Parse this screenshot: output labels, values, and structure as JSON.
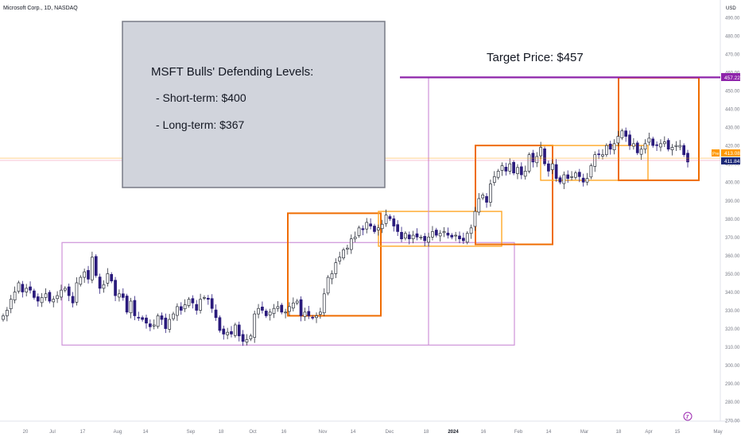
{
  "header": {
    "symbol_title": "Microsoft Corp., 1D, NASDAQ",
    "currency": "USD"
  },
  "colors": {
    "candle_bull_fill": "#ffffff",
    "candle_bull_border": "#2a2e39",
    "candle_bear": "#2a1b7c",
    "box_dark_orange": "#ef6c00",
    "box_light_orange": "#ffa726",
    "box_violet": "#ce93d8",
    "target_line": "#8e24aa",
    "note_fill": "#d1d4dc",
    "note_border": "#787b86",
    "price_badge_blue": "#1e2a78",
    "pre_badge_orange": "#ff9800"
  },
  "annotations": {
    "note_title": "MSFT Bulls' Defending Levels:",
    "note_short_term": "- Short-term: $400",
    "note_long_term": "- Long-term: $367",
    "target_label": "Target Price: $457"
  },
  "price_badges": {
    "target": "457.22",
    "pre_label": "Pre",
    "pre_value": "413.08",
    "last": "411.84"
  },
  "footer": {
    "tv_logo_text": "𝟕"
  },
  "chart_data": {
    "type": "candlestick",
    "title": "Microsoft Corp., 1D, NASDAQ",
    "y_axis_label": "USD",
    "ylim": [
      266,
      496
    ],
    "y_ticks": [
      "490.00",
      "480.00",
      "470.00",
      "460.00",
      "450.00",
      "440.00",
      "430.00",
      "420.00",
      "410.00",
      "400.00",
      "390.00",
      "380.00",
      "370.00",
      "360.00",
      "350.00",
      "340.00",
      "330.00",
      "320.00",
      "310.00",
      "300.00",
      "290.00",
      "280.00",
      "270.00"
    ],
    "x_ticks": [
      "20",
      "Jul",
      "17",
      "Aug",
      "14",
      "Sep",
      "18",
      "Oct",
      "16",
      "Nov",
      "14",
      "Dec",
      "18",
      "2024",
      "16",
      "Feb",
      "14",
      "Mar",
      "18",
      "Apr",
      "15",
      "May"
    ],
    "close_prices": [
      327,
      330,
      336,
      340,
      345,
      340,
      342,
      341,
      337,
      335,
      337,
      339,
      335,
      336,
      338,
      341,
      342,
      338,
      334,
      345,
      348,
      351,
      347,
      359,
      349,
      342,
      344,
      350,
      346,
      338,
      339,
      337,
      329,
      335,
      327,
      326,
      325,
      323,
      321,
      322,
      327,
      325,
      320,
      325,
      328,
      332,
      330,
      333,
      336,
      334,
      330,
      336,
      337,
      336,
      331,
      326,
      319,
      317,
      318,
      317,
      322,
      316,
      313,
      314,
      316,
      328,
      331,
      330,
      327,
      329,
      331,
      332,
      329,
      329,
      332,
      334,
      335,
      327,
      329,
      327,
      326,
      327,
      329,
      339,
      348,
      350,
      356,
      359,
      363,
      364,
      369,
      370,
      375,
      374,
      378,
      376,
      373,
      375,
      377,
      382,
      380,
      376,
      373,
      369,
      372,
      369,
      371,
      370,
      370,
      368,
      370,
      373,
      371,
      372,
      373,
      371,
      370,
      371,
      369,
      368,
      372,
      375,
      384,
      391,
      393,
      389,
      399,
      403,
      406,
      409,
      406,
      410,
      405,
      408,
      404,
      406,
      415,
      411,
      414,
      419,
      410,
      406,
      410,
      402,
      400,
      404,
      402,
      403,
      405,
      403,
      400,
      402,
      409,
      415,
      415,
      415,
      420,
      418,
      421,
      425,
      428,
      425,
      420,
      421,
      416,
      418,
      421,
      424,
      420,
      420,
      421,
      422,
      418,
      419,
      420,
      420,
      415,
      411
    ],
    "target_price": 457.22,
    "last_price": 411.84,
    "premarket_price": 413.08,
    "ranges": [
      {
        "style": "violet",
        "low": 311,
        "high": 367
      },
      {
        "style": "dark-orange",
        "low": 327,
        "high": 383
      },
      {
        "style": "light-orange",
        "low": 365,
        "high": 384
      },
      {
        "style": "dark-orange",
        "low": 366,
        "high": 420
      },
      {
        "style": "light-orange",
        "low": 401,
        "high": 420
      },
      {
        "style": "dark-orange",
        "low": 401,
        "high": 457
      }
    ]
  }
}
